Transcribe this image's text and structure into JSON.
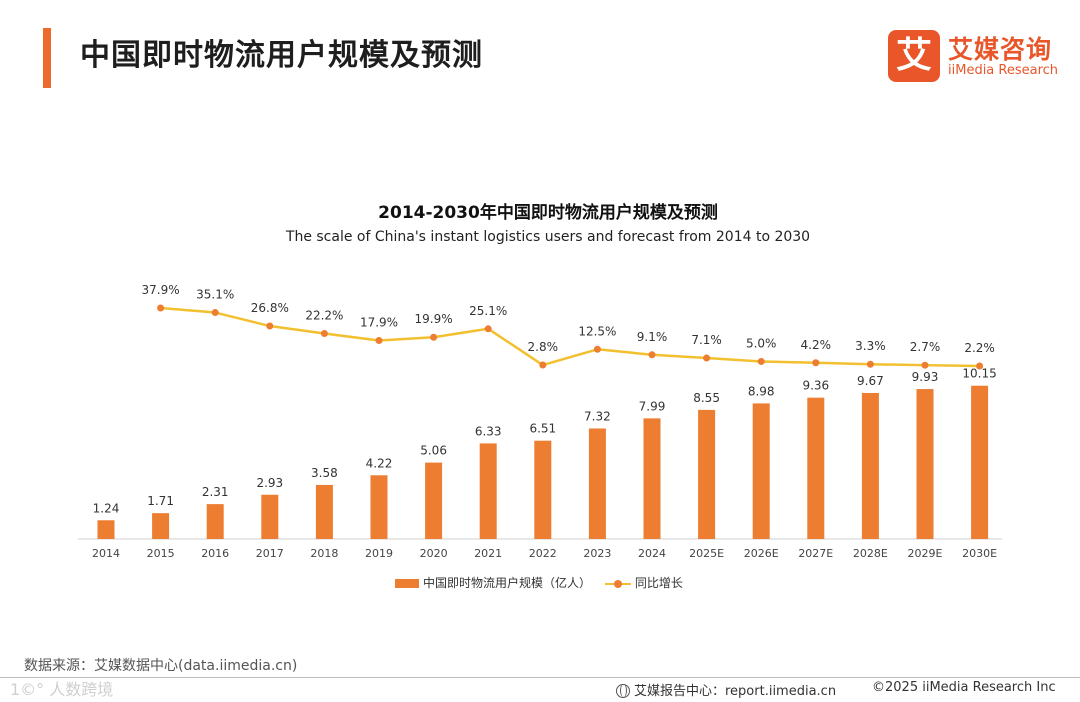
{
  "header": {
    "title": "中国即时物流用户规模及预测"
  },
  "logo": {
    "mark": "艾",
    "cn": "艾媒咨询",
    "en": "iiMedia Research"
  },
  "chart_data": {
    "type": "bar",
    "title": "2014-2030年中国即时物流用户规模及预测",
    "subtitle": "The scale of China's instant logistics users and forecast from 2014 to 2030",
    "categories": [
      "2014",
      "2015",
      "2016",
      "2017",
      "2018",
      "2019",
      "2020",
      "2021",
      "2022",
      "2023",
      "2024",
      "2025E",
      "2026E",
      "2027E",
      "2028E",
      "2029E",
      "2030E"
    ],
    "series": [
      {
        "name": "中国即时物流用户规模（亿人）",
        "type": "bar",
        "color": "#ed7d31",
        "values": [
          1.24,
          1.71,
          2.31,
          2.93,
          3.58,
          4.22,
          5.06,
          6.33,
          6.51,
          7.32,
          7.99,
          8.55,
          8.98,
          9.36,
          9.67,
          9.93,
          10.15
        ],
        "labels": [
          "1.24",
          "1.71",
          "2.31",
          "2.93",
          "3.58",
          "4.22",
          "5.06",
          "6.33",
          "6.51",
          "7.32",
          "7.99",
          "8.55",
          "8.98",
          "9.36",
          "9.67",
          "9.93",
          "10.15"
        ]
      },
      {
        "name": "同比增长",
        "type": "line",
        "color": "#f2c02e",
        "marker_color": "#ed7d31",
        "values": [
          null,
          37.9,
          35.1,
          26.8,
          22.2,
          17.9,
          19.9,
          25.1,
          2.8,
          12.5,
          9.1,
          7.1,
          5.0,
          4.2,
          3.3,
          2.7,
          2.2
        ],
        "labels": [
          "",
          "37.9%",
          "35.1%",
          "26.8%",
          "22.2%",
          "17.9%",
          "19.9%",
          "25.1%",
          "2.8%",
          "12.5%",
          "9.1%",
          "7.1%",
          "5.0%",
          "4.2%",
          "3.3%",
          "2.7%",
          "2.2%"
        ]
      }
    ],
    "legend_position": "bottom",
    "grid": false
  },
  "legend": {
    "bar_label": "中国即时物流用户规模（亿人）",
    "line_label": "同比增长"
  },
  "source": "数据来源：艾媒数据中心(data.iimedia.cn)",
  "footer": {
    "watermark": "1©° 人数跨境",
    "report": "艾媒报告中心：report.iimedia.cn",
    "copyright": "©2025  iiMedia Research  Inc"
  }
}
